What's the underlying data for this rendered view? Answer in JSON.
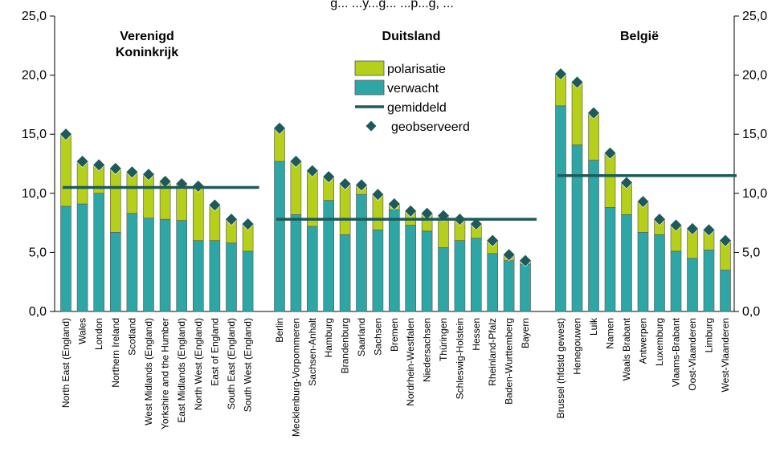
{
  "chart_data": {
    "type": "bar",
    "stacked": true,
    "title": "",
    "title_fragment": "g... ...y...g... ...p...g, ...",
    "ylim": [
      0,
      25
    ],
    "yticks": [
      "0,0",
      "5,0",
      "10,0",
      "15,0",
      "20,0",
      "25,0"
    ],
    "ytick_values": [
      0,
      5,
      10,
      15,
      20,
      25
    ],
    "secondary_axis": true,
    "colors": {
      "verwacht": "#2fa6a6",
      "polarisatie": "#b5cf1a",
      "gemiddeld": "#1e5a5a",
      "geobserveerd": "#1e5a5a",
      "bar_edge": "#555555"
    },
    "legend": [
      {
        "key": "polarisatie",
        "label": "polarisatie"
      },
      {
        "key": "verwacht",
        "label": "verwacht"
      },
      {
        "key": "gemiddeld",
        "label": "gemiddeld"
      },
      {
        "key": "geobserveerd",
        "label": "geobserveerd"
      }
    ],
    "groups": [
      {
        "title_lines": [
          "Verenigd",
          "Koninkrijk"
        ],
        "mean": 10.5,
        "categories": [
          "North East (England)",
          "Wales",
          "London",
          "Northern Ireland",
          "Scotland",
          "West Midlands (England)",
          "Yorkshire and the Humber",
          "East Midlands (England)",
          "North West (England)",
          "East of England",
          "South East (England)",
          "South West (England)"
        ],
        "verwacht": [
          8.9,
          9.1,
          10.0,
          6.7,
          8.3,
          7.9,
          7.8,
          7.7,
          6.0,
          6.0,
          5.8,
          5.1
        ],
        "observed": [
          15.0,
          12.7,
          12.4,
          12.1,
          11.8,
          11.6,
          11.0,
          10.8,
          10.6,
          9.0,
          7.8,
          7.4
        ]
      },
      {
        "title_lines": [
          "Duitsland"
        ],
        "mean": 7.8,
        "categories": [
          "Berlin",
          "Mecklenburg-Vorpommeren",
          "Sachsen-Anhalt",
          "Hamburg",
          "Brandenburg",
          "Saarland",
          "Sachsen",
          "Bremen",
          "Nordrhein-Westfalen",
          "Niedersachsen",
          "Thüringen",
          "Schleswig-Holstein",
          "Hessen",
          "Rheinland-Pfalz",
          "Baden-Wurttemberg",
          "Bayern"
        ],
        "verwacht": [
          12.7,
          8.2,
          7.2,
          9.4,
          6.5,
          9.9,
          6.9,
          8.6,
          7.3,
          6.8,
          5.4,
          6.0,
          6.2,
          4.9,
          4.3,
          4.0
        ],
        "observed": [
          15.5,
          12.7,
          11.9,
          11.4,
          10.8,
          10.7,
          9.9,
          9.1,
          8.5,
          8.3,
          8.1,
          7.8,
          7.4,
          6.0,
          4.8,
          4.3
        ]
      },
      {
        "title_lines": [
          "België"
        ],
        "mean": 11.5,
        "categories": [
          "Brussel (hfdstd gewest)",
          "Henegouwen",
          "Luik",
          "Namen",
          "Waals Brabant",
          "Antwerpen",
          "Luxemburg",
          "Vlaams-Brabant",
          "Oost-Vlaanderen",
          "Limburg",
          "West-Vlaanderen"
        ],
        "verwacht": [
          17.4,
          14.1,
          12.8,
          8.8,
          8.2,
          6.7,
          6.5,
          5.1,
          4.5,
          5.2,
          3.5
        ],
        "observed": [
          20.1,
          19.4,
          16.8,
          13.4,
          10.9,
          9.3,
          7.8,
          7.3,
          7.0,
          6.9,
          6.0
        ]
      }
    ]
  }
}
